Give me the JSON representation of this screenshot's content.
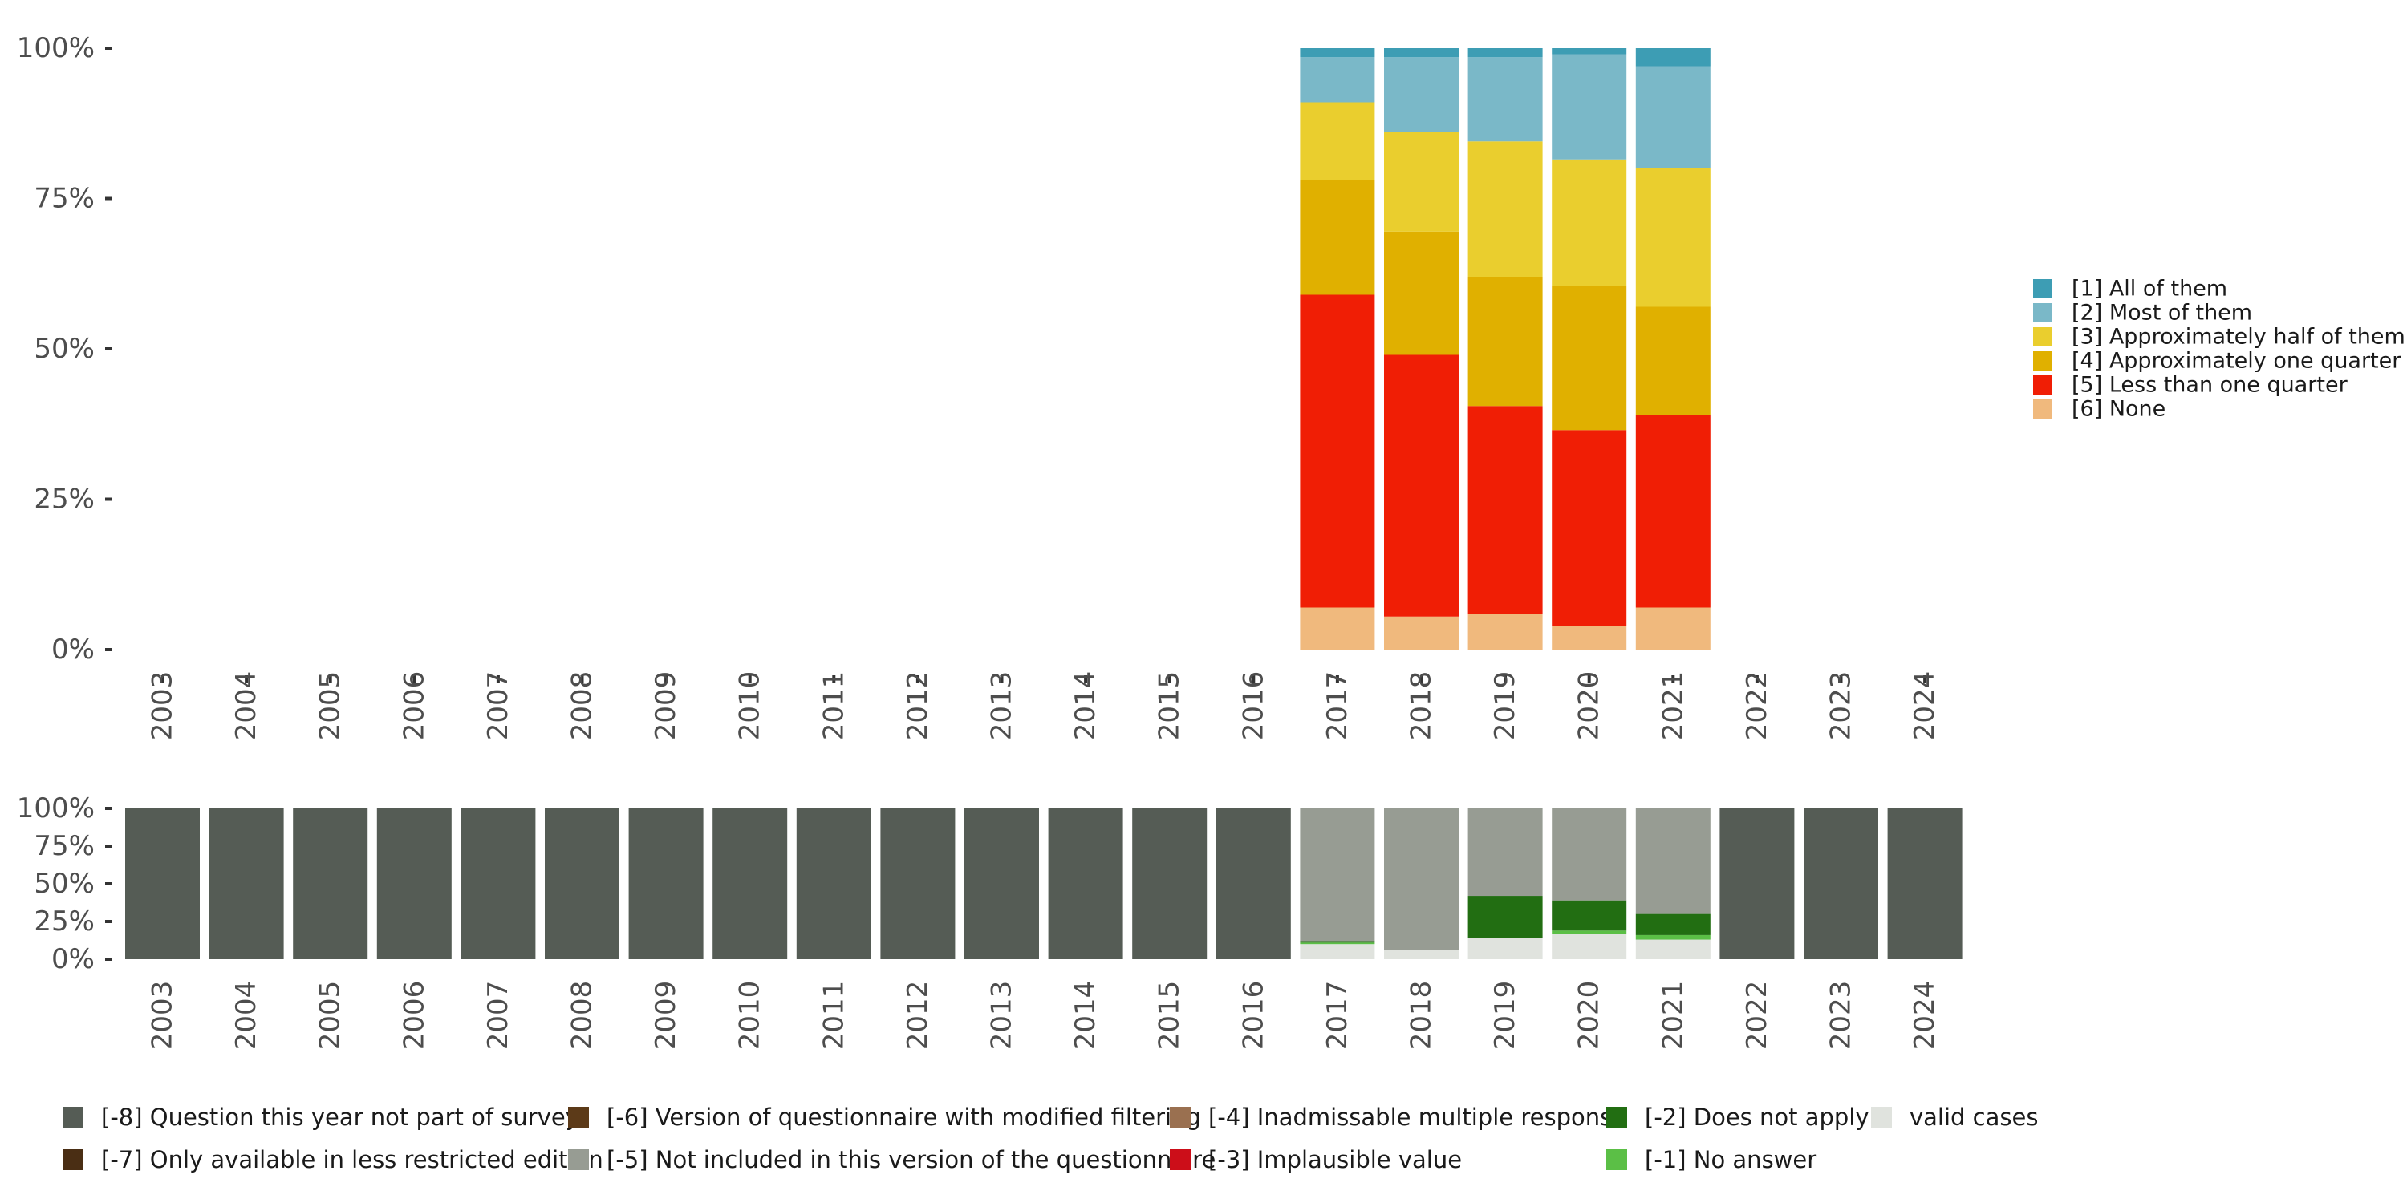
{
  "chart_data": [
    {
      "type": "bar",
      "stacked": true,
      "normalized": true,
      "ylim": [
        0,
        100
      ],
      "yticks": [
        "0%",
        "25%",
        "50%",
        "75%",
        "100%"
      ],
      "categories": [
        "2003",
        "2004",
        "2005",
        "2006",
        "2007",
        "2008",
        "2009",
        "2010",
        "2011",
        "2012",
        "2013",
        "2014",
        "2015",
        "2016",
        "2017",
        "2018",
        "2019",
        "2020",
        "2021",
        "2022",
        "2023",
        "2024"
      ],
      "legend_position": "right",
      "series": [
        {
          "name": "[6] None",
          "color": "#F0B97D",
          "values": [
            null,
            null,
            null,
            null,
            null,
            null,
            null,
            null,
            null,
            null,
            null,
            null,
            null,
            null,
            7,
            5.5,
            6,
            4,
            7,
            null,
            null,
            null
          ]
        },
        {
          "name": "[5] Less than one quarter",
          "color": "#F01E05",
          "values": [
            null,
            null,
            null,
            null,
            null,
            null,
            null,
            null,
            null,
            null,
            null,
            null,
            null,
            null,
            52,
            43.5,
            34.5,
            32.5,
            32,
            null,
            null,
            null
          ]
        },
        {
          "name": "[4] Approximately one quarter",
          "color": "#E0B000",
          "values": [
            null,
            null,
            null,
            null,
            null,
            null,
            null,
            null,
            null,
            null,
            null,
            null,
            null,
            null,
            19,
            20.5,
            21.5,
            24,
            18,
            null,
            null,
            null
          ]
        },
        {
          "name": "[3] Approximately half of them",
          "color": "#EACE2E",
          "values": [
            null,
            null,
            null,
            null,
            null,
            null,
            null,
            null,
            null,
            null,
            null,
            null,
            null,
            null,
            13,
            16.5,
            22.5,
            21,
            23,
            null,
            null,
            null
          ]
        },
        {
          "name": "[2] Most of them",
          "color": "#7AB8C8",
          "values": [
            null,
            null,
            null,
            null,
            null,
            null,
            null,
            null,
            null,
            null,
            null,
            null,
            null,
            null,
            7.5,
            12.5,
            14,
            17.5,
            17,
            null,
            null,
            null
          ]
        },
        {
          "name": "[1] All of them",
          "color": "#3D9DB4",
          "values": [
            null,
            null,
            null,
            null,
            null,
            null,
            null,
            null,
            null,
            null,
            null,
            null,
            null,
            null,
            1.5,
            1.5,
            1.5,
            1,
            3,
            null,
            null,
            null
          ]
        }
      ],
      "legend_order": [
        "[1] All of them",
        "[2] Most of them",
        "[3] Approximately half of them",
        "[4] Approximately one quarter",
        "[5] Less than one quarter",
        "[6] None"
      ]
    },
    {
      "type": "bar",
      "stacked": true,
      "normalized": true,
      "ylim": [
        0,
        100
      ],
      "yticks": [
        "0%",
        "25%",
        "50%",
        "75%",
        "100%"
      ],
      "categories": [
        "2003",
        "2004",
        "2005",
        "2006",
        "2007",
        "2008",
        "2009",
        "2010",
        "2011",
        "2012",
        "2013",
        "2014",
        "2015",
        "2016",
        "2017",
        "2018",
        "2019",
        "2020",
        "2021",
        "2022",
        "2023",
        "2024"
      ],
      "legend_position": "bottom",
      "series": [
        {
          "name": "valid cases",
          "color": "#E0E3DE",
          "values": [
            0,
            0,
            0,
            0,
            0,
            0,
            0,
            0,
            0,
            0,
            0,
            0,
            0,
            0,
            10,
            6,
            14,
            17,
            13,
            0,
            0,
            0
          ]
        },
        {
          "name": "[-1] No answer",
          "color": "#5BBF46",
          "values": [
            0,
            0,
            0,
            0,
            0,
            0,
            0,
            0,
            0,
            0,
            0,
            0,
            0,
            0,
            1,
            0,
            0,
            2,
            3,
            0,
            0,
            0
          ]
        },
        {
          "name": "[-2] Does not apply",
          "color": "#226E12",
          "values": [
            0,
            0,
            0,
            0,
            0,
            0,
            0,
            0,
            0,
            0,
            0,
            0,
            0,
            0,
            1,
            0,
            28,
            20,
            14,
            0,
            0,
            0
          ]
        },
        {
          "name": "[-3] Implausible value",
          "color": "#CC0E19",
          "values": [
            0,
            0,
            0,
            0,
            0,
            0,
            0,
            0,
            0,
            0,
            0,
            0,
            0,
            0,
            0,
            0,
            0,
            0,
            0,
            0,
            0,
            0
          ]
        },
        {
          "name": "[-4] Inadmissable multiple response",
          "color": "#9A7050",
          "values": [
            0,
            0,
            0,
            0,
            0,
            0,
            0,
            0,
            0,
            0,
            0,
            0,
            0,
            0,
            0,
            0,
            0,
            0,
            0,
            0,
            0,
            0
          ]
        },
        {
          "name": "[-5] Not included in this version of the questionnaire",
          "color": "#979C93",
          "values": [
            0,
            0,
            0,
            0,
            0,
            0,
            0,
            0,
            0,
            0,
            0,
            0,
            0,
            0,
            88,
            94,
            58,
            61,
            70,
            0,
            0,
            0
          ]
        },
        {
          "name": "[-6] Version of questionnaire with modified filtering",
          "color": "#5C3A18",
          "values": [
            0,
            0,
            0,
            0,
            0,
            0,
            0,
            0,
            0,
            0,
            0,
            0,
            0,
            0,
            0,
            0,
            0,
            0,
            0,
            0,
            0,
            0
          ]
        },
        {
          "name": "[-7] Only available in less restricted edition",
          "color": "#4A2E14",
          "values": [
            0,
            0,
            0,
            0,
            0,
            0,
            0,
            0,
            0,
            0,
            0,
            0,
            0,
            0,
            0,
            0,
            0,
            0,
            0,
            0,
            0,
            0
          ]
        },
        {
          "name": "[-8] Question this year not part of survey",
          "color": "#555C55",
          "values": [
            100,
            100,
            100,
            100,
            100,
            100,
            100,
            100,
            100,
            100,
            100,
            100,
            100,
            100,
            0,
            0,
            0,
            0,
            0,
            100,
            100,
            100
          ]
        }
      ],
      "legend_order": [
        "[-8] Question this year not part of survey",
        "[-7] Only available in less restricted edition",
        "[-6] Version of questionnaire with modified filtering",
        "[-5] Not included in this version of the questionnaire",
        "[-4] Inadmissable multiple response",
        "[-3] Implausible value",
        "[-2] Does not apply",
        "[-1] No answer",
        "valid cases"
      ]
    }
  ]
}
